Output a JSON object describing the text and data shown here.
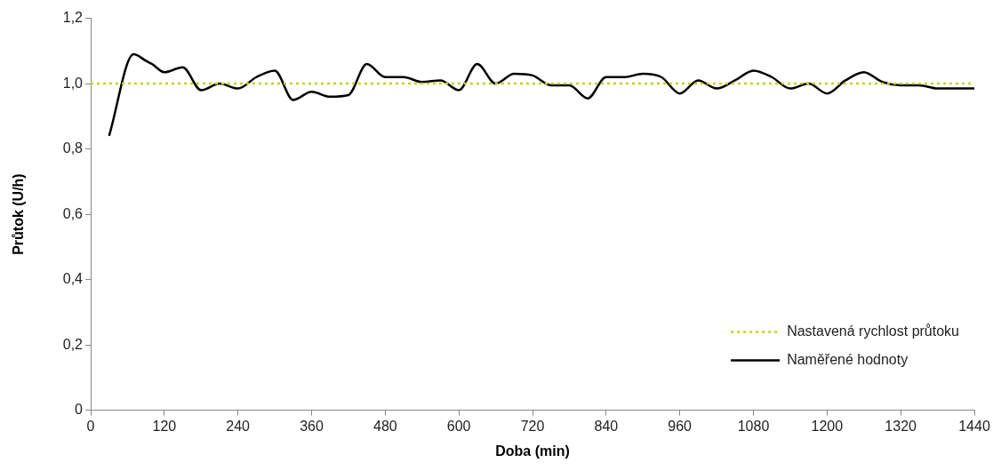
{
  "chart_data": {
    "type": "line",
    "xlabel": "Doba (min)",
    "ylabel": "Průtok (U/h)",
    "xlim": [
      0,
      1440
    ],
    "xticks": [
      0,
      120,
      240,
      360,
      480,
      600,
      720,
      840,
      960,
      1080,
      1200,
      1320,
      1440
    ],
    "ylim": [
      0,
      1.2
    ],
    "yticks": [
      0,
      {
        "value": 0.2,
        "label": "0,2"
      },
      {
        "value": 0.4,
        "label": "0,4"
      },
      {
        "value": 0.6,
        "label": "0,6"
      },
      {
        "value": 0.8,
        "label": "0,8"
      },
      {
        "value": 1.0,
        "label": "1,0"
      },
      {
        "value": 1.2,
        "label": "1,2"
      }
    ],
    "grid": false,
    "legend": "bottom right",
    "marker": "none",
    "series": [
      {
        "name": "Nastavená rychlost průtoku",
        "color": "#c2d500",
        "line_style": "dotted",
        "x": [
          0,
          1440
        ],
        "values": [
          1.0,
          1.0
        ]
      },
      {
        "name": "Naměřené hodnoty",
        "color": "#000000",
        "line_style": "solid",
        "x": [
          30,
          70,
          90,
          100,
          120,
          150,
          180,
          210,
          240,
          270,
          300,
          330,
          360,
          390,
          420,
          450,
          480,
          510,
          540,
          570,
          600,
          630,
          660,
          690,
          720,
          750,
          780,
          810,
          840,
          870,
          900,
          930,
          960,
          990,
          1020,
          1050,
          1080,
          1110,
          1140,
          1170,
          1200,
          1230,
          1260,
          1290,
          1320,
          1350,
          1380,
          1410,
          1440
        ],
        "values": [
          0.84,
          1.09,
          1.07,
          1.06,
          1.035,
          1.05,
          0.98,
          1.0,
          0.985,
          1.02,
          1.04,
          0.95,
          0.975,
          0.96,
          0.965,
          1.06,
          1.02,
          1.02,
          1.005,
          1.01,
          0.98,
          1.06,
          1.0,
          1.03,
          1.025,
          0.995,
          0.995,
          0.955,
          1.02,
          1.02,
          1.03,
          1.02,
          0.97,
          1.01,
          0.985,
          1.01,
          1.04,
          1.02,
          0.985,
          1.0,
          0.97,
          1.01,
          1.035,
          1.005,
          0.995,
          0.995,
          0.985,
          0.985,
          0.985
        ]
      }
    ]
  }
}
